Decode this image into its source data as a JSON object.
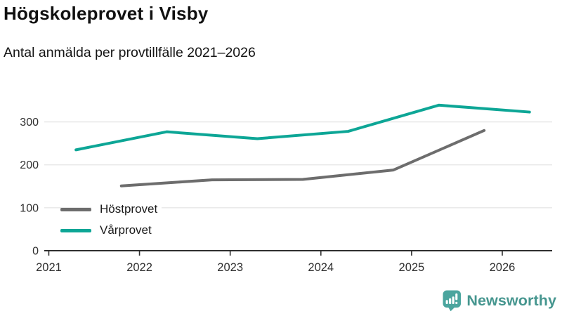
{
  "header": {
    "title": "Högskoleprovet i Visby",
    "subtitle": "Antal anmälda per provtillfälle 2021–2026"
  },
  "footer": {
    "brand": "Newsworthy",
    "brand_color": "#46968f",
    "icon": "bar-chart-speech-bubble-icon",
    "icon_color": "#4ba59e"
  },
  "chart_data": {
    "type": "line",
    "title": "Högskoleprovet i Visby",
    "subtitle": "Antal anmälda per provtillfälle 2021–2026",
    "xlabel": "",
    "ylabel": "",
    "xlim": [
      2020.95,
      2026.55
    ],
    "ylim": [
      0,
      355
    ],
    "xticks": [
      2021,
      2022,
      2023,
      2024,
      2025,
      2026
    ],
    "yticks": [
      0,
      100,
      200,
      300
    ],
    "grid": true,
    "legend_position": "inside-bottom-left",
    "colors": {
      "axis": "#2e2e2e",
      "gridline": "#e4e4e4",
      "tick_text": "#2f2f2f"
    },
    "series": [
      {
        "name": "Höstprovet",
        "color": "#6d6d6d",
        "x": [
          2021.8,
          2022.8,
          2023.8,
          2024.8,
          2025.8
        ],
        "values": [
          151,
          165,
          166,
          188,
          280
        ]
      },
      {
        "name": "Vårprovet",
        "color": "#0da696",
        "x": [
          2021.3,
          2022.3,
          2023.3,
          2024.3,
          2025.3,
          2026.3
        ],
        "values": [
          235,
          277,
          261,
          278,
          339,
          323
        ]
      }
    ]
  }
}
